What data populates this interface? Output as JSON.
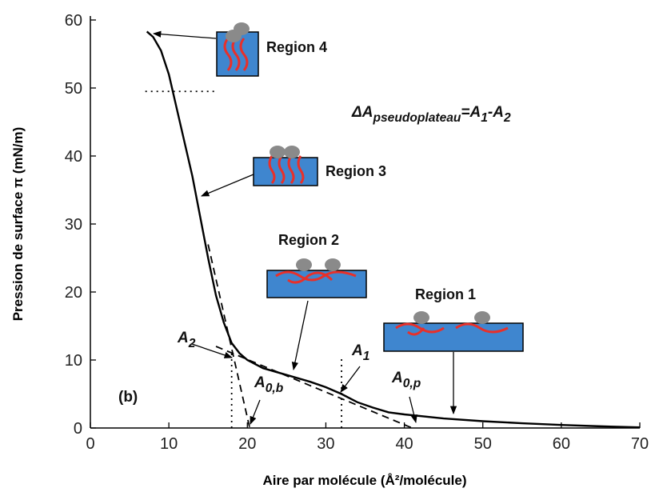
{
  "chart_data": {
    "type": "line",
    "xlabel": "Aire par molécule (Å²/molécule)",
    "ylabel": "Pression de surface π (mN/m)",
    "xlim": [
      0,
      70
    ],
    "ylim": [
      0,
      60
    ],
    "xticks": [
      0,
      10,
      20,
      30,
      40,
      50,
      60,
      70
    ],
    "yticks": [
      0,
      10,
      20,
      30,
      40,
      50,
      60
    ],
    "series": [
      {
        "color": "#000000",
        "style": "solid",
        "x": [
          7.2,
          8,
          9,
          10,
          11,
          12,
          13,
          14,
          15,
          16,
          17,
          18,
          19,
          20,
          22,
          25,
          28,
          30,
          32,
          34,
          36,
          38,
          40,
          45,
          50,
          55,
          60,
          65,
          70
        ],
        "values": [
          58.3,
          57.5,
          55.5,
          52,
          47,
          42,
          37,
          31,
          25,
          19.5,
          15.5,
          12.5,
          11,
          10,
          8.8,
          7.8,
          6.8,
          6,
          5,
          3.8,
          3,
          2.3,
          2,
          1.4,
          1,
          0.7,
          0.45,
          0.25,
          0.1
        ]
      },
      {
        "color": "#000000",
        "style": "dashed",
        "x": [
          15,
          20.3
        ],
        "values": [
          27,
          0
        ]
      },
      {
        "color": "#000000",
        "style": "dashed",
        "x": [
          16,
          41
        ],
        "values": [
          12,
          0
        ]
      },
      {
        "color": "#000000",
        "style": "dotted",
        "x": [
          18,
          18
        ],
        "values": [
          0,
          11
        ]
      },
      {
        "color": "#000000",
        "style": "dotted",
        "x": [
          32,
          32
        ],
        "values": [
          0,
          10.3
        ]
      },
      {
        "color": "#000000",
        "style": "dotted",
        "x": [
          7,
          15.8
        ],
        "values": [
          49.5,
          49.5
        ]
      }
    ],
    "annotations": [
      {
        "parts": [
          "Region 4"
        ]
      },
      {
        "parts": [
          "Region 3"
        ]
      },
      {
        "parts": [
          "Region 2"
        ]
      },
      {
        "parts": [
          "Region 1"
        ]
      },
      {
        "parts": [
          "ΔA",
          "pseudoplateau",
          "=A",
          "1",
          "-A",
          "2"
        ]
      },
      {
        "parts": [
          "A",
          "2"
        ]
      },
      {
        "parts": [
          "A",
          "1"
        ]
      },
      {
        "parts": [
          "A",
          "0,b"
        ]
      },
      {
        "parts": [
          "A",
          "0,p"
        ]
      },
      {
        "parts": [
          "(b)"
        ]
      }
    ]
  }
}
